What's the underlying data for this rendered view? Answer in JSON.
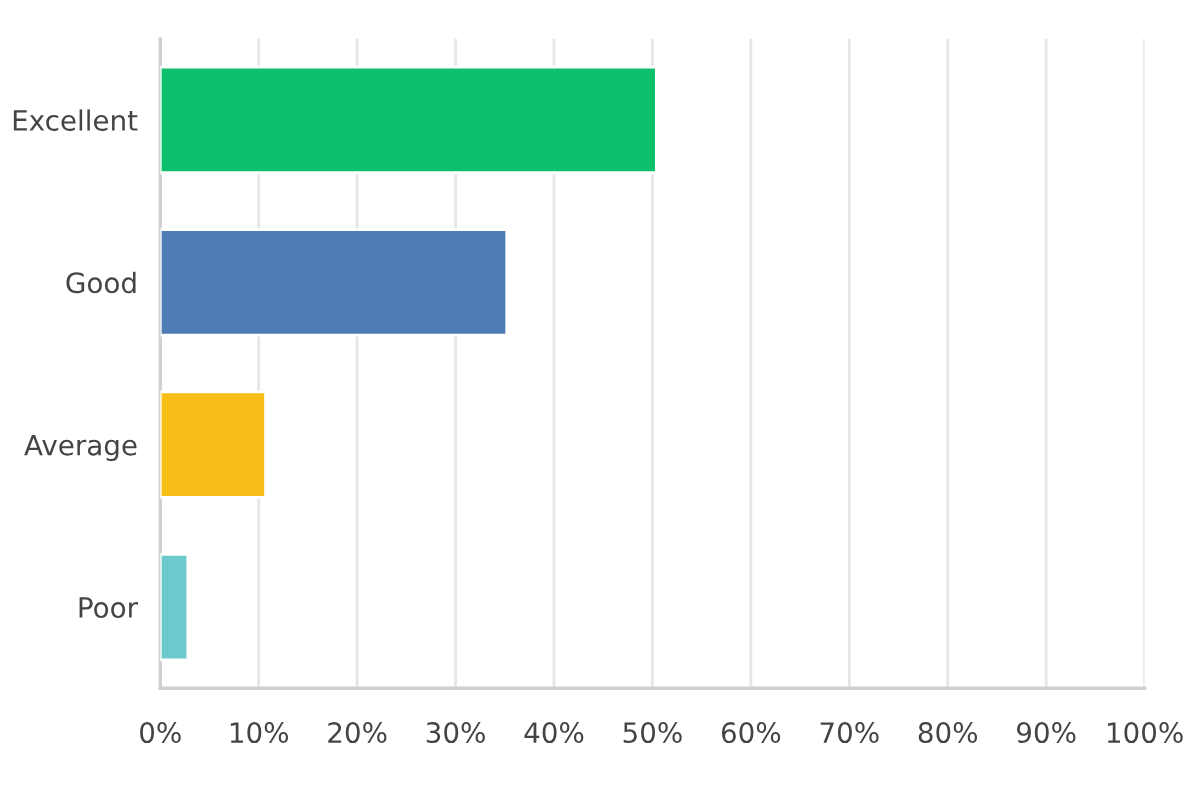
{
  "chart_data": {
    "type": "bar",
    "orientation": "horizontal",
    "categories": [
      "Excellent",
      "Good",
      "Average",
      "Poor"
    ],
    "values": [
      50.4,
      35.2,
      10.7,
      2.8
    ],
    "colors": [
      "#0ebf6b",
      "#4f7cb5",
      "#f8be18",
      "#6cc9cc"
    ],
    "xlim": [
      0,
      100
    ],
    "xticks": [
      {
        "value": 0,
        "label": "0%"
      },
      {
        "value": 10,
        "label": "10%"
      },
      {
        "value": 20,
        "label": "20%"
      },
      {
        "value": 30,
        "label": "30%"
      },
      {
        "value": 40,
        "label": "40%"
      },
      {
        "value": 50,
        "label": "50%"
      },
      {
        "value": 60,
        "label": "60%"
      },
      {
        "value": 70,
        "label": "70%"
      },
      {
        "value": 80,
        "label": "80%"
      },
      {
        "value": 90,
        "label": "90%"
      },
      {
        "value": 100,
        "label": "100%"
      }
    ],
    "grid": "x"
  }
}
